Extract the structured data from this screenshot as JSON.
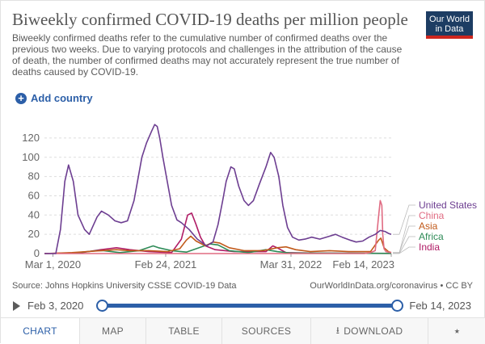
{
  "header": {
    "title": "Biweekly confirmed COVID-19 deaths per million people",
    "subtitle": "Biweekly confirmed deaths refer to the cumulative number of confirmed deaths over the previous two weeks. Due to varying protocols and challenges in the attribution of the cause of death, the number of confirmed deaths may not accurately represent the true number of deaths caused by COVID-19.",
    "logo_line1": "Our World",
    "logo_line2": "in Data"
  },
  "controls": {
    "add_country_label": "Add country"
  },
  "footer": {
    "source": "Source: Johns Hopkins University CSSE COVID-19 Data",
    "source_link": "OurWorldInData.org/coronavirus • CC BY"
  },
  "timeline": {
    "start_label": "Feb 3, 2020",
    "end_label": "Feb 14, 2023"
  },
  "tabs": [
    {
      "label": "CHART",
      "active": true
    },
    {
      "label": "MAP",
      "active": false
    },
    {
      "label": "TABLE",
      "active": false
    },
    {
      "label": "SOURCES",
      "active": false
    },
    {
      "label": "DOWNLOAD",
      "active": false
    },
    {
      "label": "",
      "active": false
    }
  ],
  "chart_data": {
    "type": "line",
    "title": "",
    "xlabel": "",
    "ylabel": "",
    "ylim": [
      0,
      130
    ],
    "xlim": [
      "2020-02-03",
      "2023-02-14"
    ],
    "y_ticks": [
      0,
      20,
      40,
      60,
      80,
      100,
      120
    ],
    "x_ticks": [
      "2020-03-01",
      "2021-02-24",
      "2022-03-31",
      "2023-02-14"
    ],
    "x_tick_labels": [
      "Mar 1, 2020",
      "Feb 24, 2021",
      "Mar 31, 2022",
      "Feb 14, 2023"
    ],
    "grid": "horizontal",
    "legend": "right",
    "series": [
      {
        "name": "United States",
        "color": "#6d3e91",
        "points": [
          [
            "2020-02-03",
            0
          ],
          [
            "2020-03-10",
            0
          ],
          [
            "2020-03-25",
            25
          ],
          [
            "2020-04-08",
            75
          ],
          [
            "2020-04-20",
            92
          ],
          [
            "2020-05-05",
            75
          ],
          [
            "2020-05-20",
            40
          ],
          [
            "2020-06-10",
            25
          ],
          [
            "2020-06-25",
            20
          ],
          [
            "2020-07-20",
            38
          ],
          [
            "2020-08-03",
            44
          ],
          [
            "2020-08-25",
            40
          ],
          [
            "2020-09-15",
            34
          ],
          [
            "2020-10-05",
            32
          ],
          [
            "2020-10-25",
            34
          ],
          [
            "2020-11-15",
            55
          ],
          [
            "2020-12-10",
            100
          ],
          [
            "2020-12-25",
            115
          ],
          [
            "2021-01-10",
            127
          ],
          [
            "2021-01-20",
            134
          ],
          [
            "2021-01-28",
            132
          ],
          [
            "2021-02-05",
            120
          ],
          [
            "2021-02-15",
            100
          ],
          [
            "2021-03-01",
            75
          ],
          [
            "2021-03-15",
            50
          ],
          [
            "2021-04-01",
            35
          ],
          [
            "2021-04-15",
            32
          ],
          [
            "2021-05-10",
            25
          ],
          [
            "2021-06-05",
            15
          ],
          [
            "2021-07-05",
            8
          ],
          [
            "2021-07-25",
            12
          ],
          [
            "2021-08-10",
            30
          ],
          [
            "2021-08-25",
            55
          ],
          [
            "2021-09-05",
            75
          ],
          [
            "2021-09-20",
            90
          ],
          [
            "2021-10-01",
            88
          ],
          [
            "2021-10-15",
            70
          ],
          [
            "2021-11-01",
            55
          ],
          [
            "2021-11-15",
            50
          ],
          [
            "2021-12-01",
            55
          ],
          [
            "2021-12-20",
            72
          ],
          [
            "2022-01-10",
            90
          ],
          [
            "2022-01-25",
            105
          ],
          [
            "2022-02-05",
            100
          ],
          [
            "2022-02-20",
            80
          ],
          [
            "2022-03-05",
            50
          ],
          [
            "2022-03-20",
            27
          ],
          [
            "2022-04-05",
            17
          ],
          [
            "2022-04-25",
            14
          ],
          [
            "2022-05-15",
            15
          ],
          [
            "2022-06-05",
            17
          ],
          [
            "2022-07-01",
            15
          ],
          [
            "2022-08-01",
            18
          ],
          [
            "2022-08-20",
            20
          ],
          [
            "2022-09-10",
            17
          ],
          [
            "2022-10-05",
            14
          ],
          [
            "2022-10-25",
            12
          ],
          [
            "2022-11-15",
            13
          ],
          [
            "2022-12-05",
            17
          ],
          [
            "2022-12-25",
            20
          ],
          [
            "2023-01-10",
            24
          ],
          [
            "2023-01-25",
            23
          ],
          [
            "2023-02-05",
            21
          ],
          [
            "2023-02-14",
            20
          ]
        ]
      },
      {
        "name": "China",
        "color": "#e06b82",
        "points": [
          [
            "2020-02-03",
            0.1
          ],
          [
            "2020-02-20",
            0.2
          ],
          [
            "2020-03-10",
            0.1
          ],
          [
            "2020-04-01",
            0
          ],
          [
            "2022-11-20",
            0
          ],
          [
            "2022-12-10",
            1
          ],
          [
            "2022-12-25",
            3
          ],
          [
            "2023-01-05",
            40
          ],
          [
            "2023-01-10",
            55
          ],
          [
            "2023-01-15",
            50
          ],
          [
            "2023-01-18",
            20
          ],
          [
            "2023-01-22",
            5
          ],
          [
            "2023-01-28",
            2
          ],
          [
            "2023-02-14",
            1
          ]
        ]
      },
      {
        "name": "Asia",
        "color": "#c15a1b",
        "points": [
          [
            "2020-02-03",
            0
          ],
          [
            "2020-05-01",
            1
          ],
          [
            "2020-08-01",
            3
          ],
          [
            "2020-09-20",
            4
          ],
          [
            "2020-11-01",
            3
          ],
          [
            "2021-01-01",
            3
          ],
          [
            "2021-03-01",
            2
          ],
          [
            "2021-04-10",
            5
          ],
          [
            "2021-05-01",
            14
          ],
          [
            "2021-05-15",
            18
          ],
          [
            "2021-06-01",
            13
          ],
          [
            "2021-07-01",
            8
          ],
          [
            "2021-07-25",
            12
          ],
          [
            "2021-08-15",
            11
          ],
          [
            "2021-09-15",
            6
          ],
          [
            "2021-11-01",
            3
          ],
          [
            "2022-01-01",
            3
          ],
          [
            "2022-02-15",
            6
          ],
          [
            "2022-03-15",
            7
          ],
          [
            "2022-04-15",
            4
          ],
          [
            "2022-06-01",
            2
          ],
          [
            "2022-08-01",
            3
          ],
          [
            "2022-10-01",
            2
          ],
          [
            "2022-12-10",
            2
          ],
          [
            "2023-01-05",
            14
          ],
          [
            "2023-01-12",
            16
          ],
          [
            "2023-01-22",
            6
          ],
          [
            "2023-02-05",
            2
          ],
          [
            "2023-02-14",
            1
          ]
        ]
      },
      {
        "name": "Africa",
        "color": "#2e8b57",
        "points": [
          [
            "2020-02-03",
            0
          ],
          [
            "2020-05-01",
            0.5
          ],
          [
            "2020-07-20",
            3
          ],
          [
            "2020-08-10",
            3
          ],
          [
            "2020-10-01",
            1
          ],
          [
            "2020-12-01",
            3
          ],
          [
            "2021-01-15",
            8
          ],
          [
            "2021-02-01",
            6
          ],
          [
            "2021-03-15",
            3
          ],
          [
            "2021-05-01",
            1.5
          ],
          [
            "2021-07-15",
            10
          ],
          [
            "2021-08-10",
            9
          ],
          [
            "2021-09-15",
            3
          ],
          [
            "2021-11-15",
            1
          ],
          [
            "2022-01-10",
            4
          ],
          [
            "2022-02-15",
            2
          ],
          [
            "2022-04-01",
            0.5
          ],
          [
            "2023-02-14",
            0.2
          ]
        ]
      },
      {
        "name": "India",
        "color": "#b01c66",
        "points": [
          [
            "2020-02-03",
            0
          ],
          [
            "2020-06-01",
            1
          ],
          [
            "2020-08-01",
            4
          ],
          [
            "2020-09-20",
            6
          ],
          [
            "2020-11-01",
            4
          ],
          [
            "2021-01-01",
            2
          ],
          [
            "2021-03-15",
            1
          ],
          [
            "2021-04-15",
            15
          ],
          [
            "2021-05-05",
            40
          ],
          [
            "2021-05-18",
            42
          ],
          [
            "2021-06-01",
            30
          ],
          [
            "2021-06-15",
            17
          ],
          [
            "2021-07-01",
            8
          ],
          [
            "2021-08-01",
            4
          ],
          [
            "2021-10-01",
            2
          ],
          [
            "2022-01-10",
            2
          ],
          [
            "2022-02-01",
            8
          ],
          [
            "2022-02-15",
            6
          ],
          [
            "2022-03-15",
            1
          ],
          [
            "2022-06-01",
            0.5
          ],
          [
            "2023-02-14",
            0.2
          ]
        ]
      }
    ]
  }
}
